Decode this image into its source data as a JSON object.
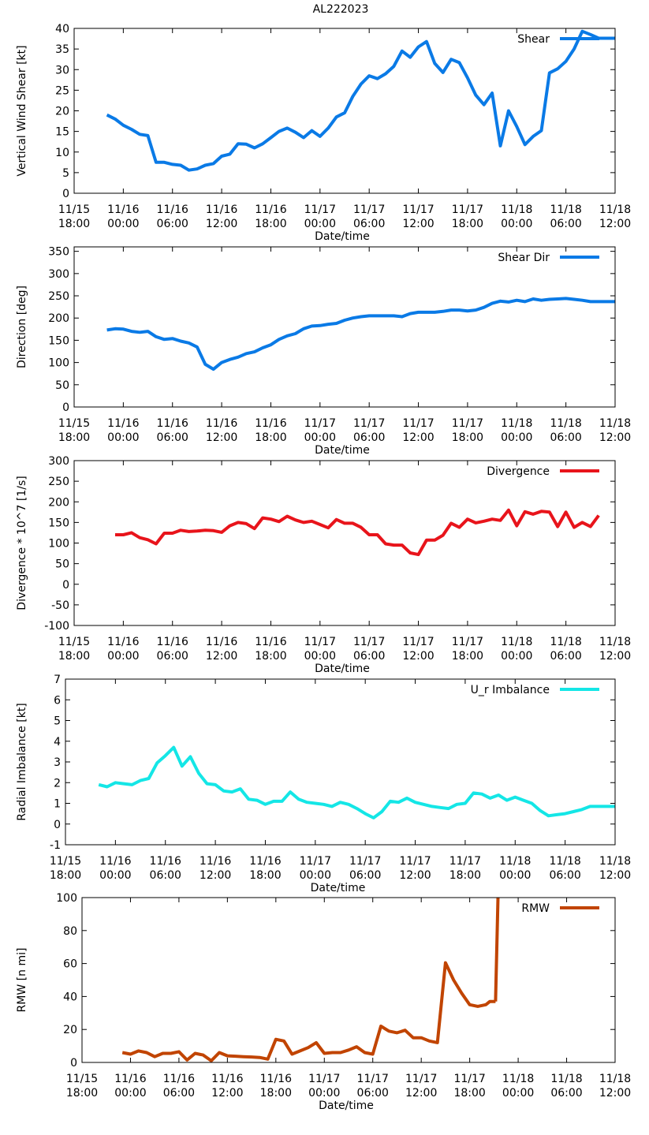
{
  "page_title": "AL222023",
  "chart_data": [
    {
      "type": "line",
      "ylabel": "Vertical Wind Shear [kt]",
      "xlabel": "Date/time",
      "ylim": [
        0,
        40
      ],
      "yticks": [
        0,
        5,
        10,
        15,
        20,
        25,
        30,
        35,
        40
      ],
      "xticks": [
        [
          "11/15",
          "18:00"
        ],
        [
          "11/16",
          "00:00"
        ],
        [
          "11/16",
          "06:00"
        ],
        [
          "11/16",
          "12:00"
        ],
        [
          "11/16",
          "18:00"
        ],
        [
          "11/17",
          "00:00"
        ],
        [
          "11/17",
          "06:00"
        ],
        [
          "11/17",
          "12:00"
        ],
        [
          "11/17",
          "18:00"
        ],
        [
          "11/18",
          "00:00"
        ],
        [
          "11/18",
          "06:00"
        ],
        [
          "11/18",
          "12:00"
        ]
      ],
      "xrange_hours": [
        0,
        66
      ],
      "series": [
        {
          "name": "Shear",
          "color": "#0a7ae6",
          "x": [
            4,
            5,
            6,
            7,
            8,
            9,
            10,
            11,
            12,
            13,
            14,
            15,
            16,
            17,
            18,
            19,
            20,
            21,
            22,
            23,
            24,
            25,
            26,
            27,
            28,
            29,
            30,
            31,
            32,
            33,
            34,
            35,
            36,
            37,
            38,
            39,
            40,
            41,
            42,
            43,
            44,
            45,
            46,
            47,
            48,
            49,
            50,
            51,
            52,
            53,
            54,
            55,
            56,
            57,
            58,
            59,
            60,
            61,
            62,
            63,
            64,
            65,
            66
          ],
          "values": [
            19,
            18,
            16.5,
            15.5,
            14.3,
            14,
            7.5,
            7.5,
            7,
            6.8,
            5.6,
            5.9,
            6.8,
            7.2,
            9,
            9.5,
            12,
            11.9,
            11,
            12,
            13.5,
            15,
            15.8,
            14.8,
            13.5,
            15.2,
            13.8,
            15.8,
            18.5,
            19.5,
            23.5,
            26.5,
            28.5,
            27.8,
            29,
            30.8,
            34.5,
            33,
            35.5,
            36.8,
            31.5,
            29.3,
            32.5,
            31.7,
            28,
            23.8,
            21.5,
            24.3,
            11.5,
            20,
            16.2,
            11.8,
            13.8,
            15.2,
            29.2,
            30.2,
            32,
            35,
            39.3,
            38.5,
            37.6,
            37.6,
            37.6
          ]
        }
      ]
    },
    {
      "type": "line",
      "ylabel": "Direction [deg]",
      "xlabel": "Date/time",
      "ylim": [
        0,
        360
      ],
      "yticks": [
        0,
        50,
        100,
        150,
        200,
        250,
        300,
        350
      ],
      "xticks": [
        [
          "11/15",
          "18:00"
        ],
        [
          "11/16",
          "00:00"
        ],
        [
          "11/16",
          "06:00"
        ],
        [
          "11/16",
          "12:00"
        ],
        [
          "11/16",
          "18:00"
        ],
        [
          "11/17",
          "00:00"
        ],
        [
          "11/17",
          "06:00"
        ],
        [
          "11/17",
          "12:00"
        ],
        [
          "11/17",
          "18:00"
        ],
        [
          "11/18",
          "00:00"
        ],
        [
          "11/18",
          "06:00"
        ],
        [
          "11/18",
          "12:00"
        ]
      ],
      "xrange_hours": [
        0,
        66
      ],
      "series": [
        {
          "name": "Shear Dir",
          "color": "#0a7ae6",
          "x": [
            4,
            5,
            6,
            7,
            8,
            9,
            10,
            11,
            12,
            13,
            14,
            15,
            16,
            17,
            18,
            19,
            20,
            21,
            22,
            23,
            24,
            25,
            26,
            27,
            28,
            29,
            30,
            31,
            32,
            33,
            34,
            35,
            36,
            37,
            38,
            39,
            40,
            41,
            42,
            43,
            44,
            45,
            46,
            47,
            48,
            49,
            50,
            51,
            52,
            53,
            54,
            55,
            56,
            57,
            58,
            59,
            60,
            61,
            62,
            63,
            64,
            65,
            66
          ],
          "values": [
            173,
            176,
            175,
            170,
            168,
            170,
            158,
            152,
            154,
            148,
            144,
            135,
            96,
            85,
            100,
            107,
            112,
            120,
            124,
            133,
            140,
            152,
            160,
            165,
            176,
            182,
            183,
            186,
            188,
            195,
            200,
            203,
            205,
            205,
            205,
            205,
            203,
            210,
            213,
            213,
            213,
            215,
            218,
            218,
            216,
            218,
            224,
            233,
            238,
            236,
            240,
            237,
            243,
            240,
            242,
            243,
            244,
            242,
            240,
            237,
            237,
            237,
            237
          ]
        }
      ]
    },
    {
      "type": "line",
      "ylabel": "Divergence * 10^7 [1/s]",
      "xlabel": "Date/time",
      "ylim": [
        -100,
        300
      ],
      "yticks": [
        -100,
        -50,
        0,
        50,
        100,
        150,
        200,
        250,
        300
      ],
      "xticks": [
        [
          "11/15",
          "18:00"
        ],
        [
          "11/16",
          "00:00"
        ],
        [
          "11/16",
          "06:00"
        ],
        [
          "11/16",
          "12:00"
        ],
        [
          "11/16",
          "18:00"
        ],
        [
          "11/17",
          "00:00"
        ],
        [
          "11/17",
          "06:00"
        ],
        [
          "11/17",
          "12:00"
        ],
        [
          "11/17",
          "18:00"
        ],
        [
          "11/18",
          "00:00"
        ],
        [
          "11/18",
          "06:00"
        ],
        [
          "11/18",
          "12:00"
        ]
      ],
      "xrange_hours": [
        0,
        66
      ],
      "series": [
        {
          "name": "Divergence",
          "color": "#e8141b",
          "x": [
            5,
            6,
            7,
            8,
            9,
            10,
            11,
            12,
            13,
            14,
            15,
            16,
            17,
            18,
            19,
            20,
            21,
            22,
            23,
            24,
            25,
            26,
            27,
            28,
            29,
            30,
            31,
            32,
            33,
            34,
            35,
            36,
            37,
            38,
            39,
            40,
            41,
            42,
            43,
            44,
            45,
            46,
            47,
            48,
            49,
            50,
            51,
            52,
            53,
            54,
            55,
            56,
            57,
            58,
            59,
            60,
            61,
            62,
            63,
            64
          ],
          "values": [
            120,
            120,
            125,
            113,
            108,
            98,
            124,
            124,
            131,
            128,
            129,
            131,
            130,
            126,
            142,
            150,
            147,
            135,
            161,
            158,
            152,
            165,
            156,
            150,
            153,
            145,
            137,
            157,
            148,
            148,
            138,
            120,
            120,
            98,
            95,
            95,
            76,
            72,
            107,
            107,
            119,
            148,
            138,
            158,
            149,
            153,
            158,
            155,
            180,
            142,
            176,
            170,
            177,
            175,
            140,
            175,
            138,
            150,
            140,
            167
          ]
        }
      ]
    },
    {
      "type": "line",
      "ylabel": "Radial Imbalance [kt]",
      "xlabel": "Date/time",
      "ylim": [
        -1,
        7
      ],
      "yticks": [
        -1,
        0,
        1,
        2,
        3,
        4,
        5,
        6,
        7
      ],
      "xticks": [
        [
          "11/15",
          "18:00"
        ],
        [
          "11/16",
          "00:00"
        ],
        [
          "11/16",
          "06:00"
        ],
        [
          "11/16",
          "12:00"
        ],
        [
          "11/16",
          "18:00"
        ],
        [
          "11/17",
          "00:00"
        ],
        [
          "11/17",
          "06:00"
        ],
        [
          "11/17",
          "12:00"
        ],
        [
          "11/17",
          "18:00"
        ],
        [
          "11/18",
          "00:00"
        ],
        [
          "11/18",
          "06:00"
        ],
        [
          "11/18",
          "12:00"
        ]
      ],
      "xrange_hours": [
        0,
        66
      ],
      "series": [
        {
          "name": "U_r Imbalance",
          "color": "#14e6e6",
          "x": [
            4,
            5,
            6,
            7,
            8,
            9,
            10,
            11,
            12,
            13,
            14,
            15,
            16,
            17,
            18,
            19,
            20,
            21,
            22,
            23,
            24,
            25,
            26,
            27,
            28,
            29,
            30,
            31,
            32,
            33,
            34,
            35,
            36,
            37,
            38,
            39,
            40,
            41,
            42,
            43,
            44,
            45,
            46,
            47,
            48,
            49,
            50,
            51,
            52,
            53,
            54,
            55,
            56,
            57,
            58,
            59,
            60,
            61,
            62,
            63,
            64,
            65,
            66
          ],
          "values": [
            1.9,
            1.8,
            2.0,
            1.95,
            1.9,
            2.1,
            2.2,
            2.95,
            3.3,
            3.7,
            2.8,
            3.25,
            2.45,
            1.95,
            1.9,
            1.6,
            1.55,
            1.7,
            1.2,
            1.15,
            0.95,
            1.1,
            1.1,
            1.55,
            1.2,
            1.05,
            1.0,
            0.95,
            0.85,
            1.05,
            0.95,
            0.75,
            0.5,
            0.3,
            0.6,
            1.1,
            1.05,
            1.25,
            1.05,
            0.95,
            0.85,
            0.8,
            0.75,
            0.95,
            1.0,
            1.5,
            1.45,
            1.25,
            1.4,
            1.15,
            1.3,
            1.15,
            1.0,
            0.65,
            0.4,
            0.45,
            0.5,
            0.6,
            0.7,
            0.85,
            0.85,
            0.85,
            0.85
          ]
        }
      ]
    },
    {
      "type": "line",
      "ylabel": "RMW [n mi]",
      "xlabel": "Date/time",
      "ylim": [
        0,
        100
      ],
      "yticks": [
        0,
        20,
        40,
        60,
        80,
        100
      ],
      "xticks": [
        [
          "11/15",
          "18:00"
        ],
        [
          "11/16",
          "00:00"
        ],
        [
          "11/16",
          "06:00"
        ],
        [
          "11/16",
          "12:00"
        ],
        [
          "11/16",
          "18:00"
        ],
        [
          "11/17",
          "00:00"
        ],
        [
          "11/17",
          "06:00"
        ],
        [
          "11/17",
          "12:00"
        ],
        [
          "11/17",
          "18:00"
        ],
        [
          "11/18",
          "00:00"
        ],
        [
          "11/18",
          "06:00"
        ],
        [
          "11/18",
          "12:00"
        ]
      ],
      "xrange_hours": [
        0,
        66
      ],
      "series": [
        {
          "name": "RMW",
          "color": "#c14400",
          "x": [
            5,
            6,
            7,
            8,
            9,
            10,
            11,
            12,
            13,
            14,
            15,
            16,
            17,
            18,
            19,
            20,
            21,
            22,
            23,
            24,
            25,
            26,
            27,
            28,
            29,
            30,
            31,
            32,
            33,
            34,
            35,
            36,
            37,
            38,
            39,
            40,
            41,
            42,
            43,
            44,
            45,
            46,
            47,
            48,
            49,
            50,
            50.5,
            51.2
          ],
          "values": [
            6,
            5,
            7,
            6,
            3.5,
            5.5,
            5.5,
            6.5,
            1.5,
            5.5,
            4.5,
            1,
            6,
            4,
            3.8,
            3.5,
            3.3,
            3,
            2,
            14,
            13,
            5,
            7,
            9,
            12,
            5.5,
            6,
            6,
            7.5,
            9.5,
            6,
            5,
            22,
            19,
            18,
            19.5,
            15,
            15,
            13,
            12,
            60.5,
            50,
            42,
            35,
            34,
            35,
            37,
            37
          ]
        }
      ],
      "overflow_series": {
        "x": [
          51.2,
          51.5
        ],
        "values": [
          37,
          100
        ]
      }
    }
  ]
}
